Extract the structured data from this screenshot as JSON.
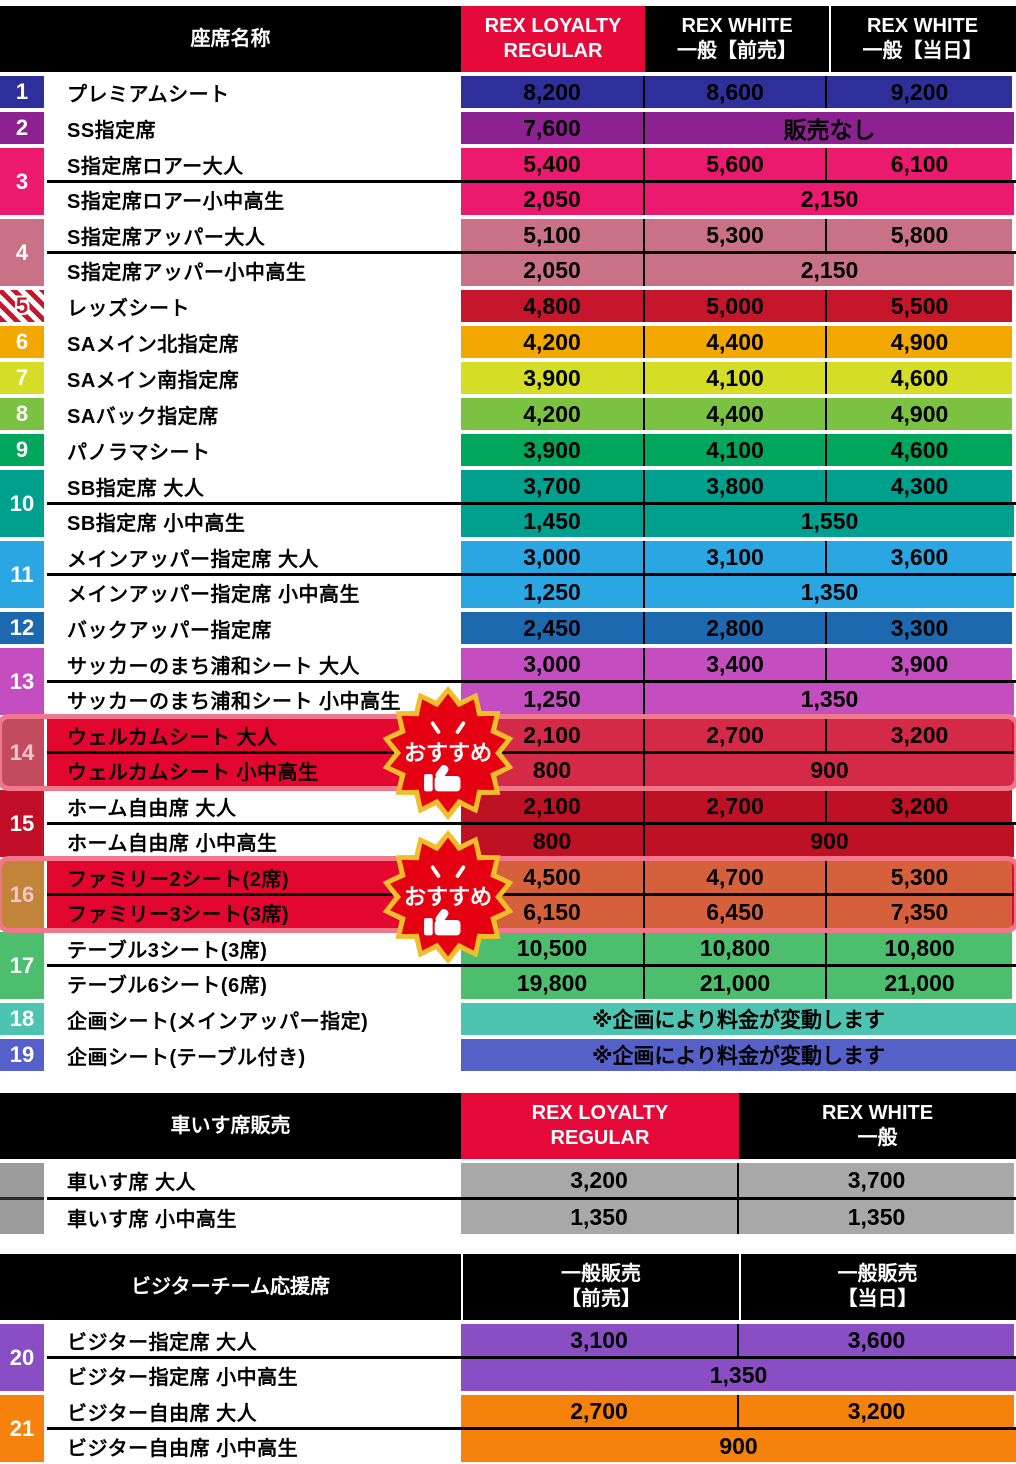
{
  "recommend_label": "おすすめ",
  "colors": {
    "accent_red": "#E60A3A",
    "highlight_border": "#F0788A",
    "star_red": "#E50012",
    "star_gold": "#F1BE2B"
  },
  "table1": {
    "header": {
      "seat": "座席名称",
      "c1a": "REX LOYALTY",
      "c1b": "REGULAR",
      "c2a": "REX WHITE",
      "c2b": "一般【前売】",
      "c3a": "REX WHITE",
      "c3b": "一般【当日】"
    },
    "groups": [
      {
        "num": "1",
        "badge": "#2F2F9C",
        "price": "#2F2F9C",
        "rows": [
          {
            "name": "プレミアムシート",
            "cells": [
              [
                "8,200",
                1
              ],
              [
                "8,600",
                1
              ],
              [
                "9,200",
                1
              ]
            ]
          }
        ]
      },
      {
        "num": "2",
        "badge": "#8E2191",
        "price": "#8E2191",
        "rows": [
          {
            "name": "SS指定席",
            "cells": [
              [
                "7,600",
                1
              ],
              [
                "販売なし",
                2
              ]
            ]
          }
        ]
      },
      {
        "num": "3",
        "badge": "#EC1A6E",
        "price": "#EC1A6E",
        "rows": [
          {
            "name": "S指定席ロアー大人",
            "cells": [
              [
                "5,400",
                1
              ],
              [
                "5,600",
                1
              ],
              [
                "6,100",
                1
              ]
            ]
          },
          {
            "name": "S指定席ロアー小中高生",
            "cells": [
              [
                "2,050",
                1
              ],
              [
                "2,150",
                2
              ]
            ]
          }
        ]
      },
      {
        "num": "4",
        "badge": "#C97287",
        "price": "#C97287",
        "rows": [
          {
            "name": "S指定席アッパー大人",
            "cells": [
              [
                "5,100",
                1
              ],
              [
                "5,300",
                1
              ],
              [
                "5,800",
                1
              ]
            ]
          },
          {
            "name": "S指定席アッパー小中高生",
            "cells": [
              [
                "2,050",
                1
              ],
              [
                "2,150",
                2
              ]
            ]
          }
        ]
      },
      {
        "num": "5",
        "badge": "stripe",
        "price": "#C5162C",
        "rows": [
          {
            "name": "レッズシート",
            "cells": [
              [
                "4,800",
                1
              ],
              [
                "5,000",
                1
              ],
              [
                "5,500",
                1
              ]
            ]
          }
        ]
      },
      {
        "num": "6",
        "badge": "#F2A800",
        "price": "#F2A800",
        "rows": [
          {
            "name": "SAメイン北指定席",
            "cells": [
              [
                "4,200",
                1
              ],
              [
                "4,400",
                1
              ],
              [
                "4,900",
                1
              ]
            ]
          }
        ]
      },
      {
        "num": "7",
        "badge": "#D5DD26",
        "price": "#D5DD26",
        "rows": [
          {
            "name": "SAメイン南指定席",
            "cells": [
              [
                "3,900",
                1
              ],
              [
                "4,100",
                1
              ],
              [
                "4,600",
                1
              ]
            ]
          }
        ]
      },
      {
        "num": "8",
        "badge": "#7CC242",
        "price": "#7CC242",
        "rows": [
          {
            "name": "SAバック指定席",
            "cells": [
              [
                "4,200",
                1
              ],
              [
                "4,400",
                1
              ],
              [
                "4,900",
                1
              ]
            ]
          }
        ]
      },
      {
        "num": "9",
        "badge": "#00A65C",
        "price": "#00A65C",
        "rows": [
          {
            "name": "パノラマシート",
            "cells": [
              [
                "3,900",
                1
              ],
              [
                "4,100",
                1
              ],
              [
                "4,600",
                1
              ]
            ]
          }
        ]
      },
      {
        "num": "10",
        "badge": "#00A08F",
        "price": "#00A08F",
        "rows": [
          {
            "name": "SB指定席 大人",
            "cells": [
              [
                "3,700",
                1
              ],
              [
                "3,800",
                1
              ],
              [
                "4,300",
                1
              ]
            ]
          },
          {
            "name": "SB指定席 小中高生",
            "cells": [
              [
                "1,450",
                1
              ],
              [
                "1,550",
                2
              ]
            ]
          }
        ]
      },
      {
        "num": "11",
        "badge": "#2AA7E2",
        "price": "#2AA7E2",
        "rows": [
          {
            "name": "メインアッパー指定席 大人",
            "cells": [
              [
                "3,000",
                1
              ],
              [
                "3,100",
                1
              ],
              [
                "3,600",
                1
              ]
            ]
          },
          {
            "name": "メインアッパー指定席 小中高生",
            "cells": [
              [
                "1,250",
                1
              ],
              [
                "1,350",
                2
              ]
            ]
          }
        ]
      },
      {
        "num": "12",
        "badge": "#1C69B0",
        "price": "#1C69B0",
        "rows": [
          {
            "name": "バックアッパー指定席",
            "cells": [
              [
                "2,450",
                1
              ],
              [
                "2,800",
                1
              ],
              [
                "3,300",
                1
              ]
            ]
          }
        ]
      },
      {
        "num": "13",
        "badge": "#C44EC0",
        "price": "#C44EC0",
        "rows": [
          {
            "name": "サッカーのまち浦和シート 大人",
            "cells": [
              [
                "3,000",
                1
              ],
              [
                "3,400",
                1
              ],
              [
                "3,900",
                1
              ]
            ]
          },
          {
            "name": "サッカーのまち浦和シート 小中高生",
            "cells": [
              [
                "1,250",
                1
              ],
              [
                "1,350",
                2
              ]
            ]
          }
        ]
      },
      {
        "num": "14",
        "badge": "#C24B5E",
        "numColor": "#F3C6CD",
        "price": "#D42A48",
        "hl": true,
        "nameBg": "#E3062F",
        "rows": [
          {
            "name": "ウェルカムシート 大人",
            "cells": [
              [
                "2,100",
                1
              ],
              [
                "2,700",
                1
              ],
              [
                "3,200",
                1
              ]
            ]
          },
          {
            "name": "ウェルカムシート 小中高生",
            "cells": [
              [
                "800",
                1
              ],
              [
                "900",
                2
              ]
            ]
          }
        ]
      },
      {
        "num": "15",
        "badge": "#C00F26",
        "price": "#BE1124",
        "rows": [
          {
            "name": "ホーム自由席 大人",
            "cells": [
              [
                "2,100",
                1
              ],
              [
                "2,700",
                1
              ],
              [
                "3,200",
                1
              ]
            ]
          },
          {
            "name": "ホーム自由席 小中高生",
            "cells": [
              [
                "800",
                1
              ],
              [
                "900",
                2
              ]
            ]
          }
        ]
      },
      {
        "num": "16",
        "badge": "#C18438",
        "numColor": "#F3C6CD",
        "price": "#D6603C",
        "hl": true,
        "nameBg": "#E3062F",
        "rows": [
          {
            "name": "ファミリー2シート(2席)",
            "cells": [
              [
                "4,500",
                1
              ],
              [
                "4,700",
                1
              ],
              [
                "5,300",
                1
              ]
            ]
          },
          {
            "name": "ファミリー3シート(3席)",
            "cells": [
              [
                "6,150",
                1
              ],
              [
                "6,450",
                1
              ],
              [
                "7,350",
                1
              ]
            ]
          }
        ]
      },
      {
        "num": "17",
        "badge": "#4DBE6E",
        "price": "#4DBE6E",
        "rows": [
          {
            "name": "テーブル3シート(3席)",
            "cells": [
              [
                "10,500",
                1
              ],
              [
                "10,800",
                1
              ],
              [
                "10,800",
                1
              ]
            ]
          },
          {
            "name": "テーブル6シート(6席)",
            "cells": [
              [
                "19,800",
                1
              ],
              [
                "21,000",
                1
              ],
              [
                "21,000",
                1
              ]
            ]
          }
        ]
      },
      {
        "num": "18",
        "badge": "#4CC4B0",
        "price": "#4CC4B0",
        "rows": [
          {
            "name": "企画シート(メインアッパー指定)",
            "cells": [
              [
                "※企画により料金が変動します",
                3
              ]
            ]
          }
        ]
      },
      {
        "num": "19",
        "badge": "#5560C8",
        "price": "#5560C8",
        "rows": [
          {
            "name": "企画シート(テーブル付き)",
            "cells": [
              [
                "※企画により料金が変動します",
                3
              ]
            ]
          }
        ]
      }
    ]
  },
  "table2": {
    "title": "車いす席販売",
    "header": {
      "c1a": "REX LOYALTY",
      "c1b": "REGULAR",
      "c2a": "REX WHITE",
      "c2b": "一般"
    },
    "groups": [
      {
        "num": "",
        "badge": "#9B9B9B",
        "badgeSplit": true,
        "price": "#A8A8A8",
        "rows": [
          {
            "name": "車いす席 大人",
            "cells": [
              [
                "3,200",
                1
              ],
              [
                "3,700",
                1
              ]
            ]
          },
          {
            "name": "車いす席 小中高生",
            "cells": [
              [
                "1,350",
                1
              ],
              [
                "1,350",
                1
              ]
            ]
          }
        ]
      }
    ]
  },
  "table3": {
    "title": "ビジターチーム応援席",
    "header": {
      "c1a": "一般販売",
      "c1b": "【前売】",
      "c2a": "一般販売",
      "c2b": "【当日】"
    },
    "groups": [
      {
        "num": "20",
        "badge": "#8A4EC4",
        "price": "#8A4EC4",
        "rows": [
          {
            "name": "ビジター指定席 大人",
            "cells": [
              [
                "3,100",
                1
              ],
              [
                "3,600",
                1
              ]
            ]
          },
          {
            "name": "ビジター指定席 小中高生",
            "cells": [
              [
                "1,350",
                2
              ]
            ]
          }
        ]
      },
      {
        "num": "21",
        "badge": "#F6820D",
        "price": "#F5820B",
        "rows": [
          {
            "name": "ビジター自由席 大人",
            "cells": [
              [
                "2,700",
                1
              ],
              [
                "3,200",
                1
              ]
            ]
          },
          {
            "name": "ビジター自由席 小中高生",
            "cells": [
              [
                "900",
                2
              ]
            ]
          }
        ]
      }
    ]
  }
}
